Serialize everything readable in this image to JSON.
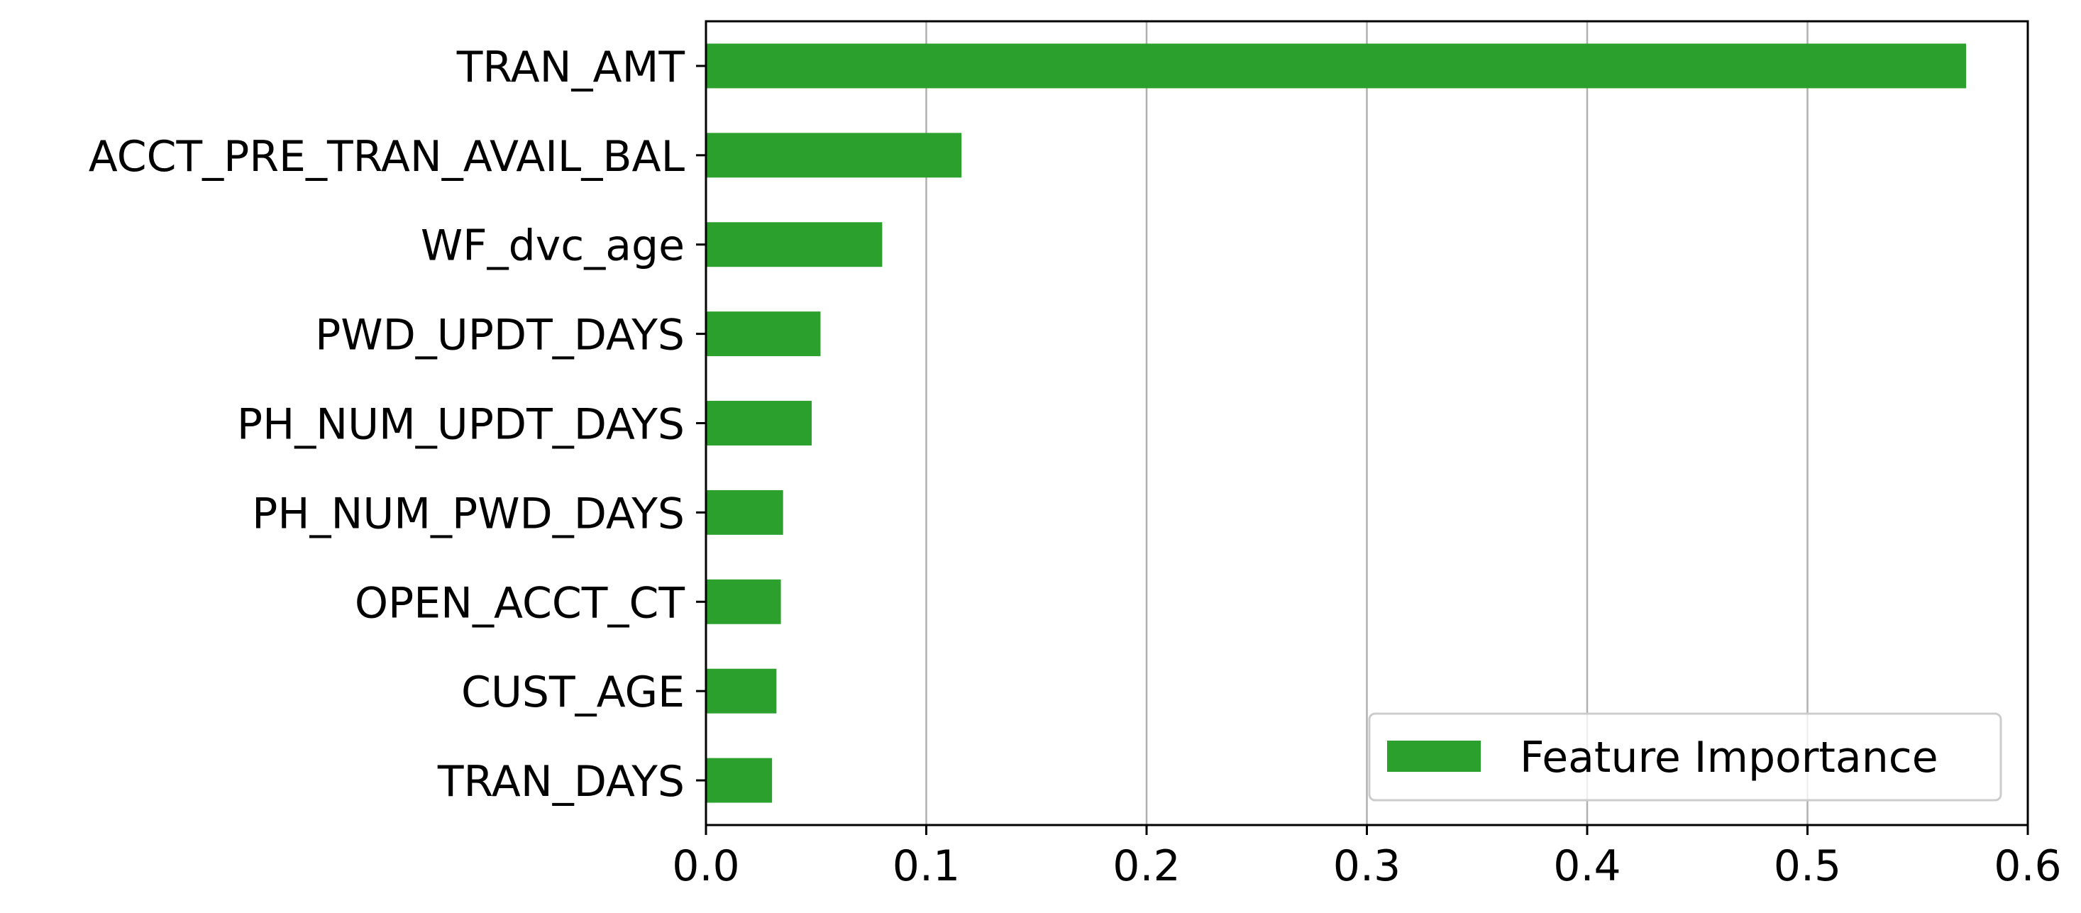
{
  "chart_data": {
    "type": "bar",
    "orientation": "horizontal",
    "categories": [
      "TRAN_AMT",
      "ACCT_PRE_TRAN_AVAIL_BAL",
      "WF_dvc_age",
      "PWD_UPDT_DAYS",
      "PH_NUM_UPDT_DAYS",
      "PH_NUM_PWD_DAYS",
      "OPEN_ACCT_CT",
      "CUST_AGE",
      "TRAN_DAYS"
    ],
    "series": [
      {
        "name": "Feature Importance",
        "values": [
          0.572,
          0.116,
          0.08,
          0.052,
          0.048,
          0.035,
          0.034,
          0.032,
          0.03
        ],
        "color": "#2ca02c"
      }
    ],
    "xticks": [
      "0.0",
      "0.1",
      "0.2",
      "0.3",
      "0.4",
      "0.5",
      "0.6"
    ],
    "xlim": [
      0,
      0.6
    ],
    "xlabel": "",
    "ylabel": "",
    "grid": "x",
    "legend_position": "lower-right"
  }
}
